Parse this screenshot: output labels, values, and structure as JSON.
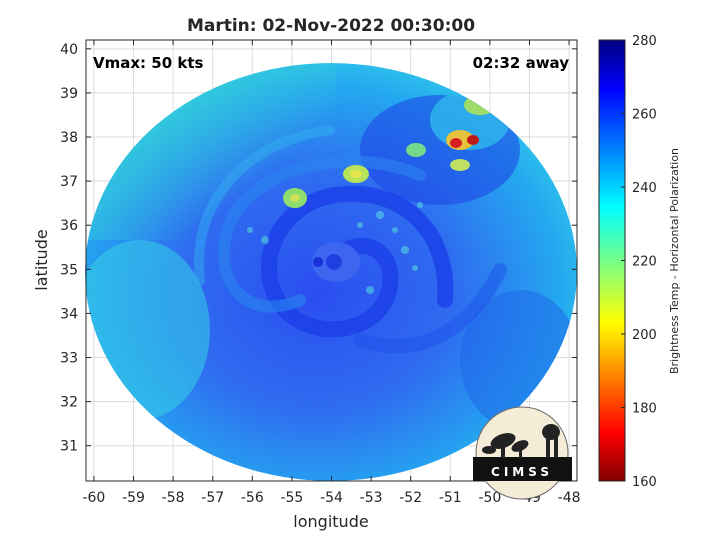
{
  "title": "Martin: 02-Nov-2022 00:30:00",
  "vmax_label": "Vmax: 50 kts",
  "time_label": "02:32 away",
  "logo_text": "CIMSS",
  "chart_data": {
    "type": "heatmap",
    "xlabel": "longitude",
    "ylabel": "latitude",
    "xlim": [
      -60.2,
      -47.8
    ],
    "ylim": [
      30.2,
      40.2
    ],
    "xticks": [
      -60,
      -59,
      -58,
      -57,
      -56,
      -55,
      -54,
      -53,
      -52,
      -51,
      -50,
      -49,
      -48
    ],
    "yticks": [
      31,
      32,
      33,
      34,
      35,
      36,
      37,
      38,
      39,
      40
    ],
    "grid": true,
    "storm_center": {
      "lon": -54.3,
      "lat": 35.1
    },
    "colorbar": {
      "label": "Brightness Temp - Horizontal Polarization",
      "range": [
        160,
        280
      ],
      "ticks": [
        160,
        180,
        200,
        220,
        240,
        260,
        280
      ],
      "colormap": "jet"
    }
  },
  "colors": {
    "cold_cloud": "#1a3df0",
    "background_ocean": "#1ec8f0",
    "warm_edge": "#9ee66a",
    "hotspot": "#d42020"
  }
}
